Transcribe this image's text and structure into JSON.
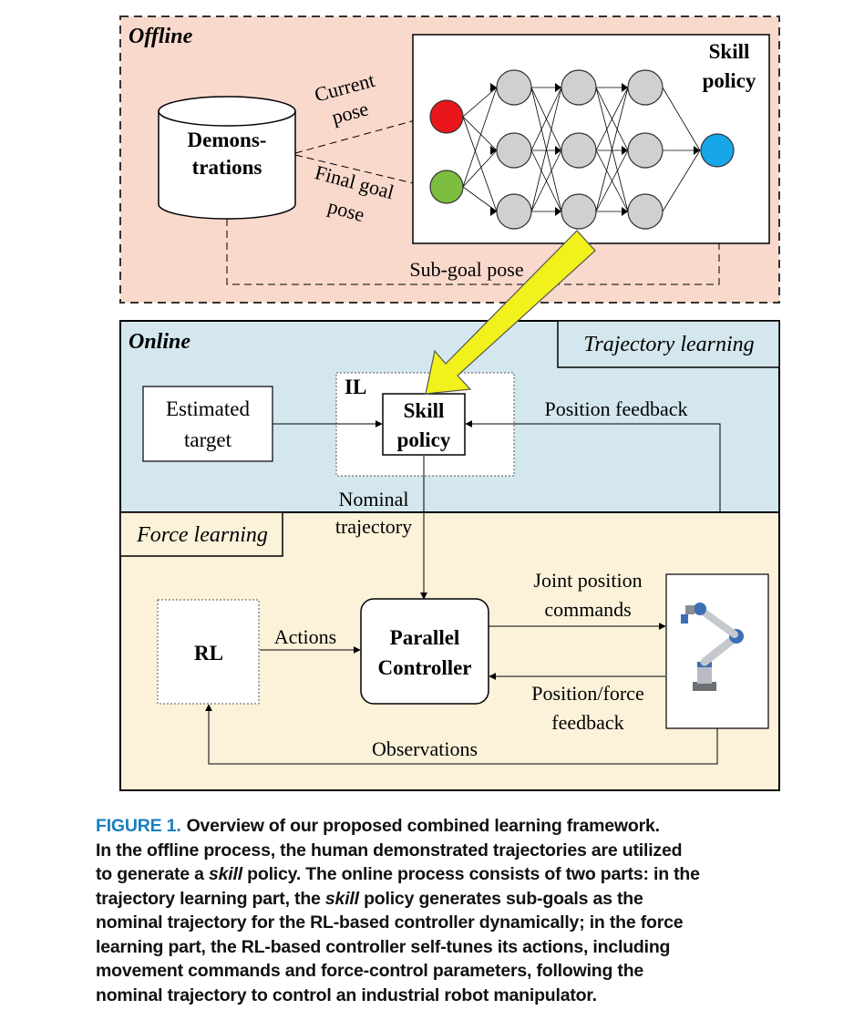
{
  "offline": {
    "label": "Offline",
    "demonstrations": [
      "Demons-",
      "trations"
    ],
    "current_pose": [
      "Current",
      "pose"
    ],
    "final_goal_pose": [
      "Final goal",
      "pose"
    ],
    "skill_policy": [
      "Skill",
      "policy"
    ],
    "sub_goal_pose": "Sub-goal pose"
  },
  "online": {
    "label": "Online",
    "trajectory_learning": "Trajectory learning",
    "estimated_target": [
      "Estimated",
      "target"
    ],
    "il": "IL",
    "skill_policy": [
      "Skill",
      "policy"
    ],
    "position_feedback": "Position feedback",
    "nominal_trajectory": [
      "Nominal",
      "trajectory"
    ]
  },
  "force": {
    "label": "Force learning",
    "rl": "RL",
    "actions": "Actions",
    "parallel_controller": [
      "Parallel",
      "Controller"
    ],
    "joint_position_commands": [
      "Joint position",
      "commands"
    ],
    "position_force_feedback": [
      "Position/force",
      "feedback"
    ],
    "observations": "Observations"
  },
  "neuron_colors": {
    "input_current": "#e8161b",
    "input_goal": "#7dbd3f",
    "hidden": "#d0d0d0",
    "output": "#17a6e8"
  },
  "colors": {
    "offline_bg": "#f9d9cc",
    "online_bg": "#d4e7ee",
    "force_bg": "#fcf2da",
    "highlight_arrow": "#f1f11b",
    "caption_accent": "#1a7ec1"
  },
  "caption": {
    "figure_label": "FIGURE 1.",
    "line1": "Overview of our proposed combined learning framework.",
    "line2": "In the offline process, the human demonstrated trajectories are utilized",
    "line3_a": "to generate a ",
    "line3_em": "skill",
    "line3_b": " policy. The online process consists of two parts: in the",
    "line4_a": "trajectory learning part, the ",
    "line4_em": "skill",
    "line4_b": " policy generates sub-goals as the",
    "line5": "nominal trajectory for the RL-based controller dynamically; in the force",
    "line6": "learning part, the RL-based controller self-tunes its actions, including",
    "line7": "movement commands and force-control parameters, following the",
    "line8": "nominal trajectory to control an industrial robot manipulator."
  }
}
